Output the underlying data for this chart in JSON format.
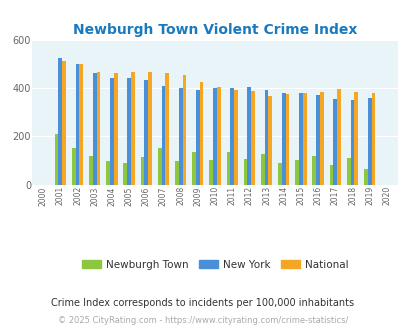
{
  "title": "Newburgh Town Violent Crime Index",
  "years": [
    2000,
    2001,
    2002,
    2003,
    2004,
    2005,
    2006,
    2007,
    2008,
    2009,
    2010,
    2011,
    2012,
    2013,
    2014,
    2015,
    2016,
    2017,
    2018,
    2019,
    2020
  ],
  "newburgh_town": [
    0,
    210,
    153,
    120,
    100,
    90,
    115,
    152,
    97,
    135,
    102,
    137,
    108,
    127,
    90,
    102,
    118,
    80,
    110,
    67,
    0
  ],
  "new_york": [
    0,
    522,
    498,
    462,
    440,
    440,
    432,
    410,
    400,
    390,
    399,
    400,
    405,
    393,
    380,
    380,
    373,
    355,
    350,
    357,
    0
  ],
  "national": [
    0,
    510,
    498,
    468,
    462,
    468,
    468,
    462,
    455,
    425,
    404,
    392,
    388,
    367,
    376,
    380,
    385,
    397,
    383,
    379,
    0
  ],
  "colors": {
    "newburgh_town": "#8dc63f",
    "new_york": "#4a90d9",
    "national": "#f5a623"
  },
  "bg_color": "#e8f4f8",
  "ylim": [
    0,
    600
  ],
  "yticks": [
    0,
    200,
    400,
    600
  ],
  "subtitle": "Crime Index corresponds to incidents per 100,000 inhabitants",
  "copyright_plain": "© 2025 CityRating.com - ",
  "copyright_link": "https://www.cityrating.com/crime-statistics/",
  "title_color": "#1a7abf",
  "subtitle_color": "#333333",
  "copyright_color": "#aaaaaa",
  "link_color": "#4a90d9"
}
